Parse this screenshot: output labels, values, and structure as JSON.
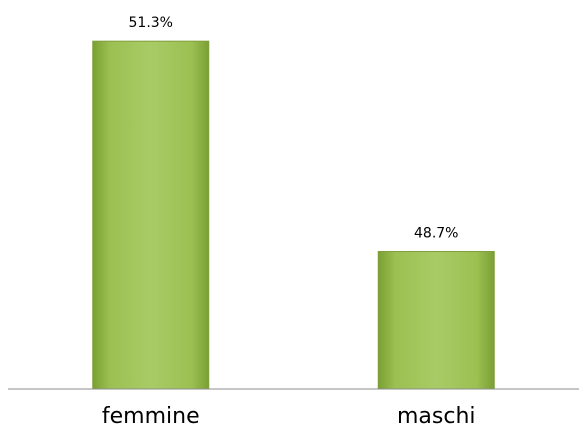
{
  "chart_data": {
    "type": "bar",
    "categories": [
      "femmine",
      "maschi"
    ],
    "values": [
      51.3,
      48.7
    ],
    "value_labels": [
      "51.3%",
      "48.7%"
    ],
    "color": "#9bbb59",
    "ylim": [
      47,
      51.5
    ]
  }
}
